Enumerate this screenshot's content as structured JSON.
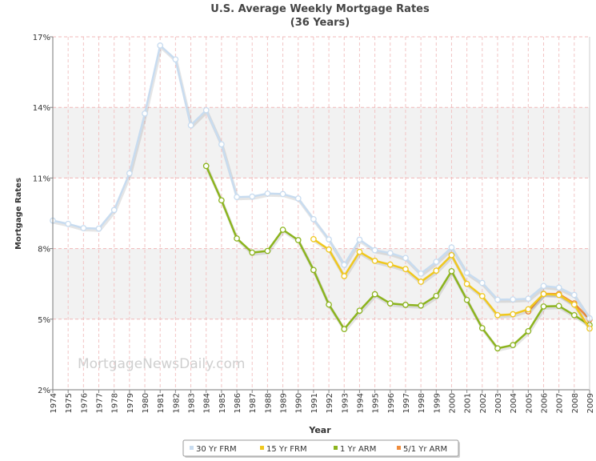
{
  "chart_data": {
    "type": "line",
    "title": "U.S. Average Weekly Mortgage Rates",
    "subtitle": "(36 Years)",
    "xlabel": "Year",
    "ylabel": "Mortgage Rates",
    "watermark": "MortgageNewsDaily.com",
    "x": [
      1974,
      1975,
      1976,
      1977,
      1978,
      1979,
      1980,
      1981,
      1982,
      1983,
      1984,
      1985,
      1986,
      1987,
      1988,
      1989,
      1990,
      1991,
      1992,
      1993,
      1994,
      1995,
      1996,
      1997,
      1998,
      1999,
      2000,
      2001,
      2002,
      2003,
      2004,
      2005,
      2006,
      2007,
      2008,
      2009
    ],
    "ylim": [
      2,
      17
    ],
    "yticks": [
      2,
      5,
      8,
      11,
      14,
      17
    ],
    "ytick_labels": [
      "2%",
      "5%",
      "8%",
      "11%",
      "14%",
      "17%"
    ],
    "grid": true,
    "legend_position": "bottom-center",
    "series": [
      {
        "name": "30 Yr FRM",
        "color": "#c8dcf0",
        "values": [
          9.19,
          9.05,
          8.87,
          8.85,
          9.64,
          11.2,
          13.74,
          16.63,
          16.04,
          13.24,
          13.88,
          12.43,
          10.19,
          10.21,
          10.34,
          10.32,
          10.13,
          9.25,
          8.39,
          7.31,
          8.38,
          7.93,
          7.81,
          7.6,
          6.94,
          7.44,
          8.05,
          6.97,
          6.54,
          5.83,
          5.84,
          5.87,
          6.41,
          6.34,
          6.03,
          5.04
        ]
      },
      {
        "name": "15 Yr FRM",
        "color": "#f0c81e",
        "values": [
          null,
          null,
          null,
          null,
          null,
          null,
          null,
          null,
          null,
          null,
          null,
          null,
          null,
          null,
          null,
          null,
          null,
          8.4,
          7.96,
          6.83,
          7.86,
          7.48,
          7.32,
          7.13,
          6.59,
          7.06,
          7.72,
          6.5,
          5.98,
          5.17,
          5.21,
          5.42,
          6.07,
          6.03,
          5.62,
          4.6
        ]
      },
      {
        "name": "1 Yr ARM",
        "color": "#8cb41e",
        "values": [
          null,
          null,
          null,
          null,
          null,
          null,
          null,
          null,
          null,
          null,
          11.51,
          10.05,
          8.43,
          7.83,
          7.9,
          8.8,
          8.36,
          7.09,
          5.62,
          4.58,
          5.36,
          6.06,
          5.67,
          5.61,
          5.58,
          5.99,
          7.04,
          5.82,
          4.62,
          3.76,
          3.9,
          4.49,
          5.54,
          5.56,
          5.17,
          4.75
        ]
      },
      {
        "name": "5/1 Yr ARM",
        "color": "#f08c3c",
        "values": [
          null,
          null,
          null,
          null,
          null,
          null,
          null,
          null,
          null,
          null,
          null,
          null,
          null,
          null,
          null,
          null,
          null,
          null,
          null,
          null,
          null,
          null,
          null,
          null,
          null,
          null,
          null,
          null,
          null,
          null,
          null,
          5.33,
          6.08,
          6.07,
          5.67,
          4.99
        ]
      }
    ]
  }
}
